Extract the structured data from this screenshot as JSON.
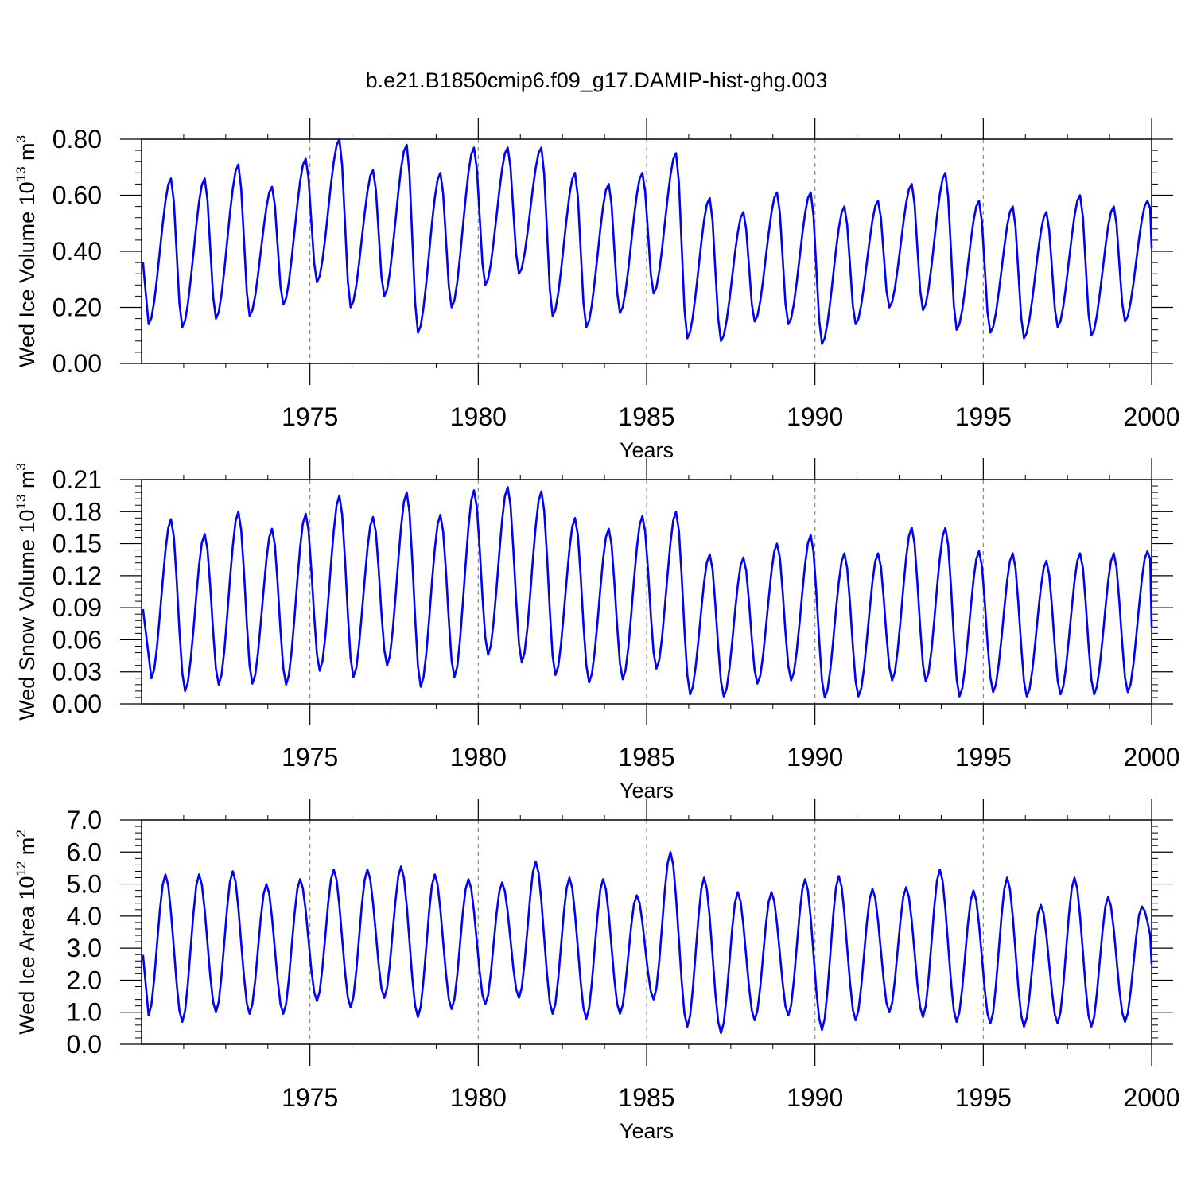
{
  "title": "b.e21.B1850cmip6.f09_g17.DAMIP-hist-ghg.003",
  "colors": {
    "line": "#0000ff",
    "axis": "#000000",
    "grid": "#888888"
  },
  "chart_data": [
    {
      "type": "line",
      "ylabel": {
        "base": "Wed Ice Volume 10",
        "exp": "13",
        "unit": " m",
        "unit_exp": "3"
      },
      "xlabel": "Years",
      "xlim": [
        1970.0,
        2000.0
      ],
      "ylim": [
        0.0,
        0.8
      ],
      "yticks": [
        0.0,
        0.2,
        0.4,
        0.6,
        0.8
      ],
      "ytick_labels": [
        "0.00",
        "0.20",
        "0.40",
        "0.60",
        "0.80"
      ],
      "xticks": [
        1975,
        1980,
        1985,
        1990,
        1995,
        2000
      ],
      "xtick_labels": [
        "1975",
        "1980",
        "1985",
        "1990",
        "1995",
        "2000"
      ],
      "vgrid": [
        1975,
        1980,
        1985,
        1990,
        1995
      ],
      "series": [
        {
          "name": "Wed Ice Volume",
          "min_month": 2,
          "peak_month": 10,
          "yearly_min": [
            0.14,
            0.13,
            0.16,
            0.17,
            0.21,
            0.29,
            0.2,
            0.24,
            0.11,
            0.2,
            0.28,
            0.32,
            0.17,
            0.13,
            0.18,
            0.25,
            0.09,
            0.08,
            0.15,
            0.14,
            0.07,
            0.14,
            0.2,
            0.19,
            0.12,
            0.11,
            0.09,
            0.13,
            0.1,
            0.15
          ],
          "yearly_max": [
            0.66,
            0.66,
            0.71,
            0.63,
            0.73,
            0.8,
            0.69,
            0.78,
            0.68,
            0.77,
            0.77,
            0.77,
            0.68,
            0.64,
            0.68,
            0.75,
            0.59,
            0.54,
            0.61,
            0.61,
            0.56,
            0.58,
            0.64,
            0.68,
            0.58,
            0.56,
            0.54,
            0.6,
            0.56,
            0.58
          ],
          "end_value": 0.41
        }
      ]
    },
    {
      "type": "line",
      "ylabel": {
        "base": "Wed Snow Volume 10",
        "exp": "13",
        "unit": " m",
        "unit_exp": "3"
      },
      "xlabel": "Years",
      "xlim": [
        1970.0,
        2000.0
      ],
      "ylim": [
        0.0,
        0.21
      ],
      "yticks": [
        0.0,
        0.03,
        0.06,
        0.09,
        0.12,
        0.15,
        0.18,
        0.21
      ],
      "ytick_labels": [
        "0.00",
        "0.03",
        "0.06",
        "0.09",
        "0.12",
        "0.15",
        "0.18",
        "0.21"
      ],
      "xticks": [
        1975,
        1980,
        1985,
        1990,
        1995,
        2000
      ],
      "xtick_labels": [
        "1975",
        "1980",
        "1985",
        "1990",
        "1995",
        "2000"
      ],
      "vgrid": [
        1975,
        1980,
        1985,
        1990,
        1995
      ],
      "series": [
        {
          "name": "Wed Snow Volume",
          "min_month": 3,
          "peak_month": 10,
          "yearly_min": [
            0.024,
            0.012,
            0.018,
            0.019,
            0.018,
            0.031,
            0.025,
            0.036,
            0.016,
            0.025,
            0.046,
            0.039,
            0.027,
            0.02,
            0.023,
            0.033,
            0.009,
            0.007,
            0.019,
            0.022,
            0.006,
            0.007,
            0.022,
            0.021,
            0.007,
            0.011,
            0.007,
            0.009,
            0.009,
            0.011
          ],
          "yearly_max": [
            0.173,
            0.159,
            0.18,
            0.164,
            0.178,
            0.195,
            0.175,
            0.198,
            0.177,
            0.2,
            0.203,
            0.199,
            0.174,
            0.164,
            0.176,
            0.18,
            0.14,
            0.137,
            0.15,
            0.158,
            0.141,
            0.141,
            0.165,
            0.165,
            0.143,
            0.141,
            0.134,
            0.141,
            0.141,
            0.143
          ],
          "end_value": 0.072
        }
      ]
    },
    {
      "type": "line",
      "ylabel": {
        "base": "Wed Ice Area 10",
        "exp": "12",
        "unit": " m",
        "unit_exp": "2"
      },
      "xlabel": "Years",
      "xlim": [
        1970.0,
        2000.0
      ],
      "ylim": [
        0.0,
        7.0
      ],
      "yticks": [
        0.0,
        1.0,
        2.0,
        3.0,
        4.0,
        5.0,
        6.0,
        7.0
      ],
      "ytick_labels": [
        "0.0",
        "1.0",
        "2.0",
        "3.0",
        "4.0",
        "5.0",
        "6.0",
        "7.0"
      ],
      "xticks": [
        1975,
        1980,
        1985,
        1990,
        1995,
        2000
      ],
      "xtick_labels": [
        "1975",
        "1980",
        "1985",
        "1990",
        "1995",
        "2000"
      ],
      "vgrid": [
        1975,
        1980,
        1985,
        1990,
        1995
      ],
      "series": [
        {
          "name": "Wed Ice Area",
          "min_month": 2,
          "peak_month": 8,
          "yearly_min": [
            0.9,
            0.7,
            1.0,
            0.95,
            0.95,
            1.35,
            1.15,
            1.45,
            0.85,
            1.1,
            1.25,
            1.45,
            0.95,
            0.8,
            0.95,
            1.4,
            0.55,
            0.35,
            0.75,
            0.9,
            0.45,
            0.75,
            1.0,
            0.85,
            0.7,
            0.65,
            0.55,
            0.65,
            0.55,
            0.7
          ],
          "yearly_max": [
            5.3,
            5.3,
            5.4,
            5.0,
            5.15,
            5.45,
            5.45,
            5.55,
            5.3,
            5.15,
            5.05,
            5.7,
            5.2,
            5.15,
            4.65,
            6.0,
            5.2,
            4.75,
            4.75,
            5.15,
            5.25,
            4.85,
            4.9,
            5.45,
            4.8,
            5.2,
            4.35,
            5.2,
            4.6,
            4.3
          ],
          "end_value": 2.5
        }
      ]
    }
  ]
}
